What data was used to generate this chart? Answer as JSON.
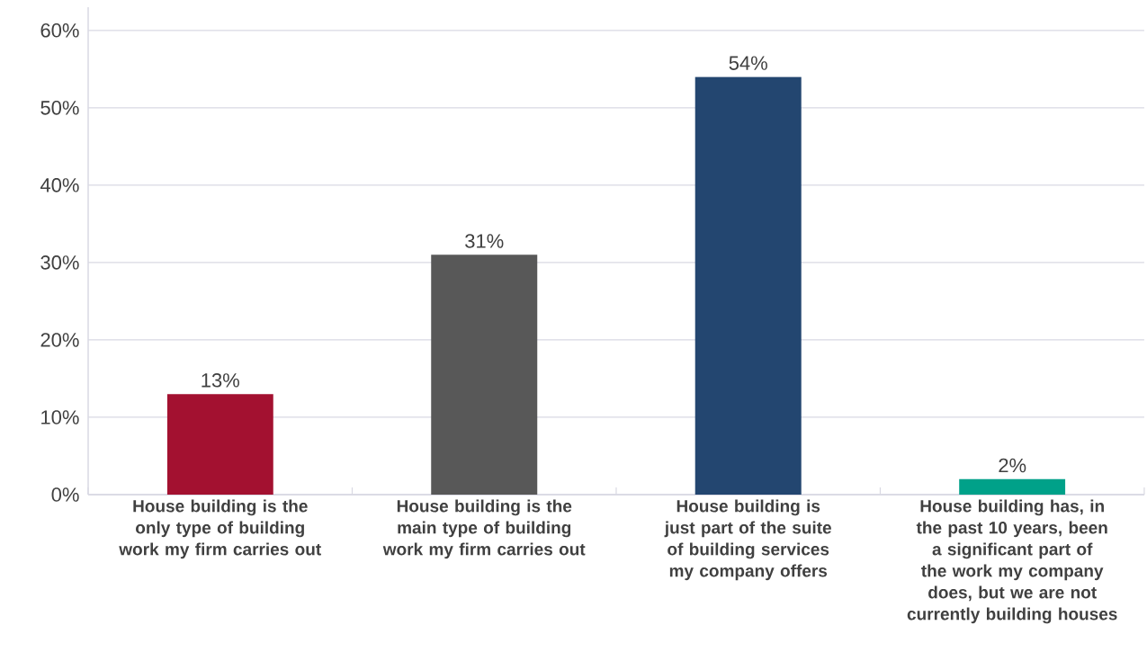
{
  "chart_data": {
    "type": "bar",
    "categories": [
      "House building is the only type of building work my firm carries out",
      "House building is the main type of building work my firm carries out",
      "House building is just part of the suite of building services my company offers",
      "House building has, in the past 10 years, been a significant part of the work my company does, but we are not currently building houses"
    ],
    "values": [
      13,
      31,
      54,
      2
    ],
    "colors": [
      "#a31130",
      "#585858",
      "#234670",
      "#00a189"
    ],
    "value_labels": [
      "13%",
      "31%",
      "54%",
      "2%"
    ],
    "ylim": [
      0,
      63
    ],
    "yticks": [
      {
        "value": 0,
        "label": "0%"
      },
      {
        "value": 10,
        "label": "10%"
      },
      {
        "value": 20,
        "label": "20%"
      },
      {
        "value": 30,
        "label": "30%"
      },
      {
        "value": 40,
        "label": "40%"
      },
      {
        "value": 50,
        "label": "50%"
      },
      {
        "value": 60,
        "label": "60%"
      }
    ],
    "grid": "y"
  }
}
